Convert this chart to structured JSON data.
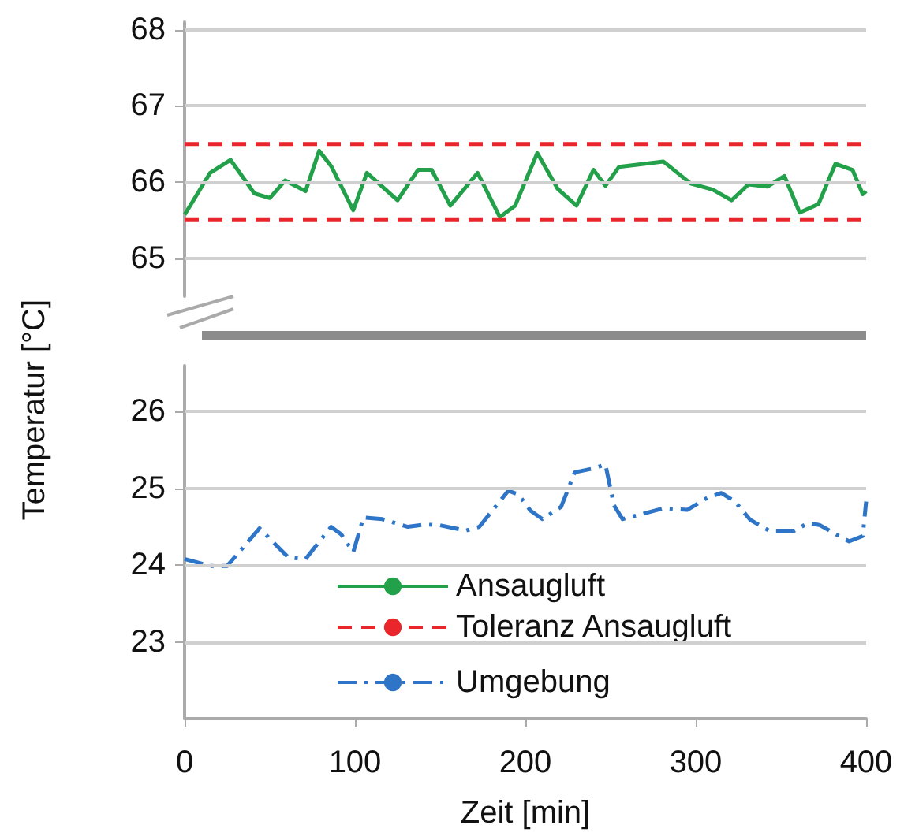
{
  "chart_data": [
    {
      "type": "line",
      "ylabel": "Temperatur [°C]",
      "xlim": [
        0,
        400
      ],
      "ylim": [
        64.5,
        68.1
      ],
      "yticks": [
        65,
        66,
        67,
        68
      ],
      "grid": "y",
      "legend": "bottom",
      "tick_labels": "y",
      "marker": "none",
      "series": [
        {
          "name": "Ansaugluft",
          "color": "#22a04a",
          "line_style": "solid",
          "x": [
            0,
            15,
            27,
            41,
            50,
            59,
            71,
            79,
            86,
            99,
            107,
            125,
            137,
            145,
            156,
            172,
            185,
            194,
            207,
            219,
            230,
            240,
            247,
            255,
            281,
            297,
            310,
            321,
            331,
            342,
            352,
            361,
            372,
            382,
            392,
            398,
            400
          ],
          "values": [
            65.57,
            66.12,
            66.29,
            65.85,
            65.79,
            66.02,
            65.88,
            66.41,
            66.21,
            65.63,
            66.12,
            65.76,
            66.16,
            66.16,
            65.69,
            66.12,
            65.54,
            65.69,
            66.38,
            65.91,
            65.69,
            66.16,
            65.95,
            66.2,
            66.27,
            65.98,
            65.9,
            65.76,
            65.97,
            65.94,
            66.08,
            65.6,
            65.71,
            66.24,
            66.16,
            65.84,
            65.88
          ]
        },
        {
          "name": "Toleranz Ansaugluft",
          "color": "#e8262b",
          "line_style": "dashed",
          "x": [
            0,
            400
          ],
          "values": [
            66.5,
            66.5
          ]
        },
        {
          "color": "#e8262b",
          "line_style": "dashed",
          "x": [
            0,
            400
          ],
          "values": [
            65.5,
            65.5
          ]
        }
      ]
    },
    {
      "type": "line",
      "xlabel": "Zeit [min]",
      "xlim": [
        0,
        400
      ],
      "xticks": [
        0,
        100,
        200,
        300,
        400
      ],
      "ylim": [
        22,
        26.6
      ],
      "yticks": [
        23,
        24,
        25,
        26
      ],
      "grid": "y",
      "legend": "bottom",
      "marker": "none",
      "series": [
        {
          "name": "Umgebung",
          "color": "#2e75c8",
          "line_style": "dashdot",
          "x": [
            0,
            15,
            25,
            44,
            52,
            61,
            71,
            86,
            92,
            99,
            105,
            116,
            131,
            141,
            150,
            165,
            173,
            190,
            196,
            203,
            210,
            221,
            229,
            240,
            247,
            252,
            257,
            281,
            295,
            307,
            315,
            323,
            332,
            343,
            358,
            366,
            373,
            384,
            390,
            398,
            400
          ],
          "values": [
            24.08,
            23.99,
            23.99,
            24.48,
            24.3,
            24.1,
            24.08,
            24.5,
            24.4,
            24.17,
            24.62,
            24.6,
            24.5,
            24.53,
            24.52,
            24.45,
            24.5,
            24.97,
            24.92,
            24.71,
            24.6,
            24.76,
            25.21,
            25.26,
            25.31,
            24.78,
            24.6,
            24.74,
            24.72,
            24.88,
            24.94,
            24.83,
            24.59,
            24.45,
            24.45,
            24.55,
            24.52,
            24.38,
            24.31,
            24.38,
            24.83
          ]
        }
      ]
    }
  ]
}
